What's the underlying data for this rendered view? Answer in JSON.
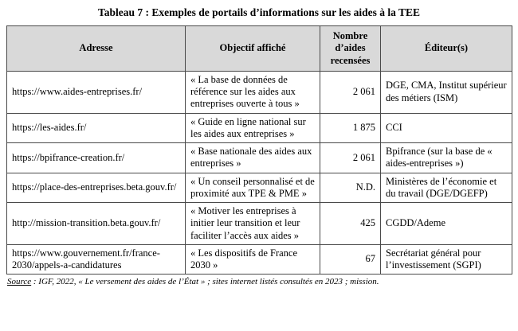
{
  "title": "Tableau 7 : Exemples de portails d’informations sur les aides à la TEE",
  "table": {
    "headers": [
      "Adresse",
      "Objectif affiché",
      "Nombre d’aides recensées",
      "Éditeur(s)"
    ],
    "rows": [
      {
        "adresse": "https://www.aides-entreprises.fr/",
        "objectif": "« La base de données de référence sur les aides aux entreprises ouverte à tous »",
        "nombre": "2 061",
        "editeur": "DGE, CMA, Institut supérieur des métiers (ISM)"
      },
      {
        "adresse": "https://les-aides.fr/",
        "objectif": "« Guide en ligne national sur les aides aux entreprises »",
        "nombre": "1 875",
        "editeur": "CCI"
      },
      {
        "adresse": "https://bpifrance-creation.fr/",
        "objectif": "« Base nationale des aides aux entreprises »",
        "nombre": "2 061",
        "editeur": "Bpifrance (sur la base de « aides-entreprises »)"
      },
      {
        "adresse": "https://place-des-entreprises.beta.gouv.fr/",
        "objectif": "« Un conseil personnalisé et de proximité aux TPE & PME »",
        "nombre": "N.D.",
        "editeur": "Ministères de l’économie et du travail (DGE/DGEFP)"
      },
      {
        "adresse": "http://mission-transition.beta.gouv.fr/",
        "objectif": "« Motiver les entreprises à initier leur transition et leur faciliter l’accès aux aides »",
        "nombre": "425",
        "editeur": "CGDD/Ademe"
      },
      {
        "adresse": "https://www.gouvernement.fr/france-2030/appels-a-candidatures",
        "objectif": "« Les dispositifs de France 2030 »",
        "nombre": "67",
        "editeur": "Secrétariat général pour l’investissement (SGPI)"
      }
    ]
  },
  "footer": {
    "label": "Source",
    "text": " : IGF, 2022, « Le versement des aides de l’État » ; sites internet listés consultés en 2023 ; mission."
  }
}
